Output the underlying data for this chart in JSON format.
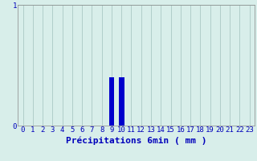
{
  "hours": [
    0,
    1,
    2,
    3,
    4,
    5,
    6,
    7,
    8,
    9,
    10,
    11,
    12,
    13,
    14,
    15,
    16,
    17,
    18,
    19,
    20,
    21,
    22,
    23
  ],
  "values": [
    0,
    0,
    0,
    0,
    0,
    0,
    0,
    0,
    0,
    0.4,
    0.4,
    0,
    0,
    0,
    0,
    0,
    0,
    0,
    0,
    0,
    0,
    0,
    0,
    0
  ],
  "bar_color": "#0000cc",
  "background_color": "#d8eeea",
  "grid_color": "#aac8c4",
  "axis_color": "#888888",
  "text_color": "#0000bb",
  "xlabel": "Précipitations 6min ( mm )",
  "ylim": [
    0,
    1
  ],
  "xlim": [
    -0.5,
    23.5
  ],
  "yticks": [
    0,
    1
  ],
  "xtick_labels": [
    "0",
    "1",
    "2",
    "3",
    "4",
    "5",
    "6",
    "7",
    "8",
    "9",
    "10",
    "11",
    "12",
    "13",
    "14",
    "15",
    "16",
    "17",
    "18",
    "19",
    "20",
    "21",
    "22",
    "23"
  ],
  "bar_width": 0.55,
  "xlabel_fontsize": 8,
  "tick_fontsize": 6.5
}
